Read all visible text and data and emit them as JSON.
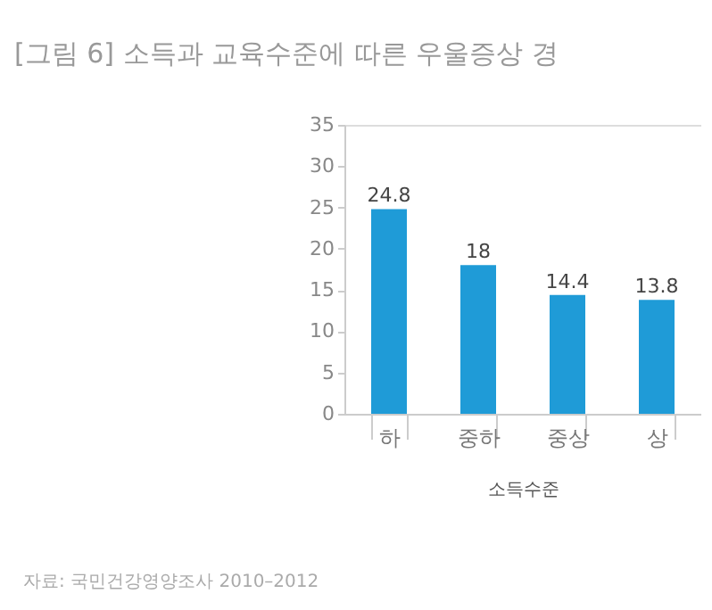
{
  "chart_data": {
    "type": "bar",
    "title": "[그림 6] 소득과 교육수준에 따른 우울증상 경",
    "xlabel": "소득수준",
    "categories": [
      "하",
      "중하",
      "중상",
      "상"
    ],
    "values": [
      24.8,
      18,
      14.4,
      13.8
    ],
    "color": "#1f9bd7",
    "ylim": [
      0,
      35
    ],
    "yticks": [
      0,
      5,
      10,
      15,
      20,
      25,
      30,
      35
    ],
    "grid": false,
    "data_labels": true,
    "annotations": [
      "자료: 국민건강영양조사 2010–2012"
    ]
  }
}
